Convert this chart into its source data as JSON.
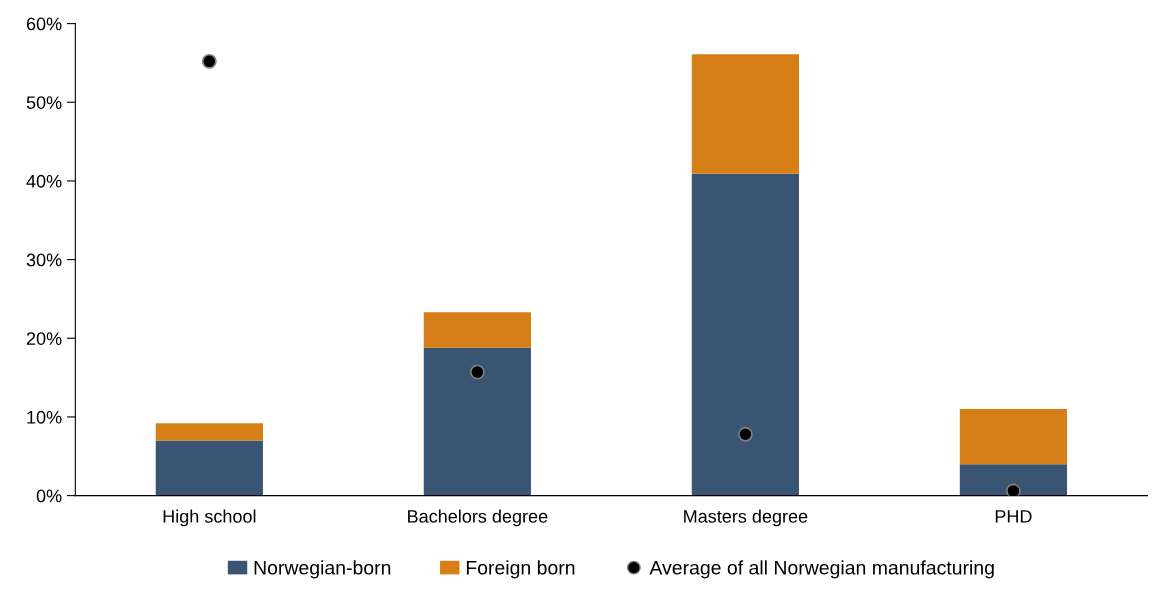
{
  "chart_data": {
    "type": "bar",
    "stacked": true,
    "categories": [
      "High school",
      "Bachelors degree",
      "Masters degree",
      "PHD"
    ],
    "series": [
      {
        "name": "Norwegian-born",
        "color": "#3a5573",
        "values": [
          7.0,
          18.8,
          40.9,
          4.0
        ]
      },
      {
        "name": "Foreign born",
        "color": "#d67f17",
        "values": [
          2.2,
          4.5,
          15.2,
          7.0
        ]
      },
      {
        "name": "Average of all Norwegian manufacturing",
        "type": "scatter",
        "color": "#000000",
        "x": [
          "High school",
          "Bachelors degree",
          "Masters degree",
          "PHD"
        ],
        "values": [
          55.2,
          15.7,
          7.8,
          0.6
        ]
      }
    ],
    "ylim": [
      0,
      60
    ],
    "yticks": [
      {
        "value": 0,
        "label": "0%"
      },
      {
        "value": 10,
        "label": "10%"
      },
      {
        "value": 20,
        "label": "20%"
      },
      {
        "value": 30,
        "label": "30%"
      },
      {
        "value": 40,
        "label": "40%"
      },
      {
        "value": 50,
        "label": "50%"
      },
      {
        "value": 60,
        "label": "60%"
      }
    ],
    "grid": false,
    "legend": "bottom",
    "marker": "circle"
  }
}
